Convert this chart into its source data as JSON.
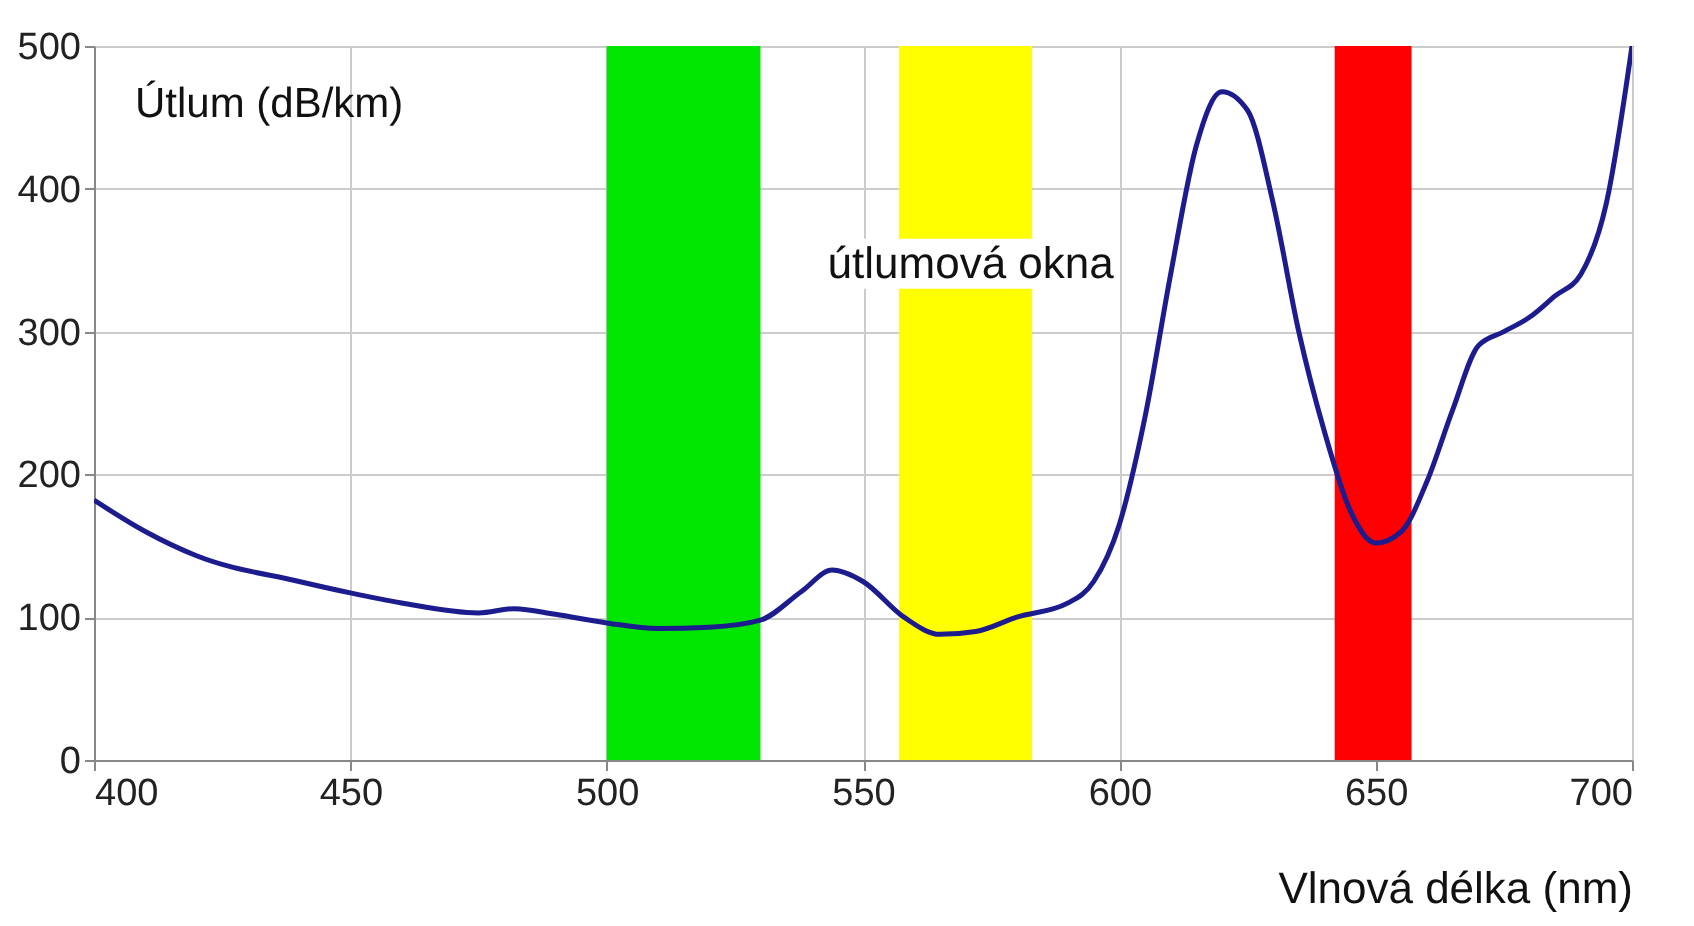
{
  "chart_data": {
    "type": "line",
    "xlabel": "Vlnová délka (nm)",
    "ylabel": "Útlum (dB/km)",
    "x": [
      400,
      410,
      420,
      440,
      450,
      460,
      475,
      482,
      490,
      500,
      510,
      520,
      530,
      538,
      544,
      550,
      558,
      565,
      572,
      580,
      590,
      595,
      600,
      605,
      610,
      615,
      620,
      625,
      630,
      635,
      640,
      645,
      650,
      655,
      660,
      665,
      670,
      675,
      680,
      685,
      690,
      695,
      700
    ],
    "series": [
      {
        "color": "#1c1c8f",
        "values": [
          182,
          160,
          143,
          125,
          117,
          110,
          103,
          106,
          102,
          96,
          92,
          93,
          98,
          118,
          133,
          125,
          100,
          88,
          90,
          100,
          110,
          125,
          165,
          240,
          340,
          430,
          468,
          455,
          390,
          300,
          230,
          175,
          152,
          160,
          195,
          245,
          290,
          300,
          310,
          325,
          340,
          390,
          500
        ]
      }
    ],
    "xlim": [
      400,
      700
    ],
    "xticks": [
      400,
      450,
      500,
      550,
      600,
      650,
      700
    ],
    "ylim": [
      0,
      500
    ],
    "yticks": [
      0,
      100,
      200,
      300,
      400,
      500
    ],
    "grid": true,
    "bands": [
      {
        "axis": "x",
        "from": 500,
        "to": 530,
        "color": "#00e600"
      },
      {
        "axis": "x",
        "from": 557,
        "to": 583,
        "color": "#ffff00"
      },
      {
        "axis": "x",
        "from": 642,
        "to": 657,
        "color": "#ff0000"
      }
    ],
    "annotations": [
      "útlumová okna"
    ]
  }
}
